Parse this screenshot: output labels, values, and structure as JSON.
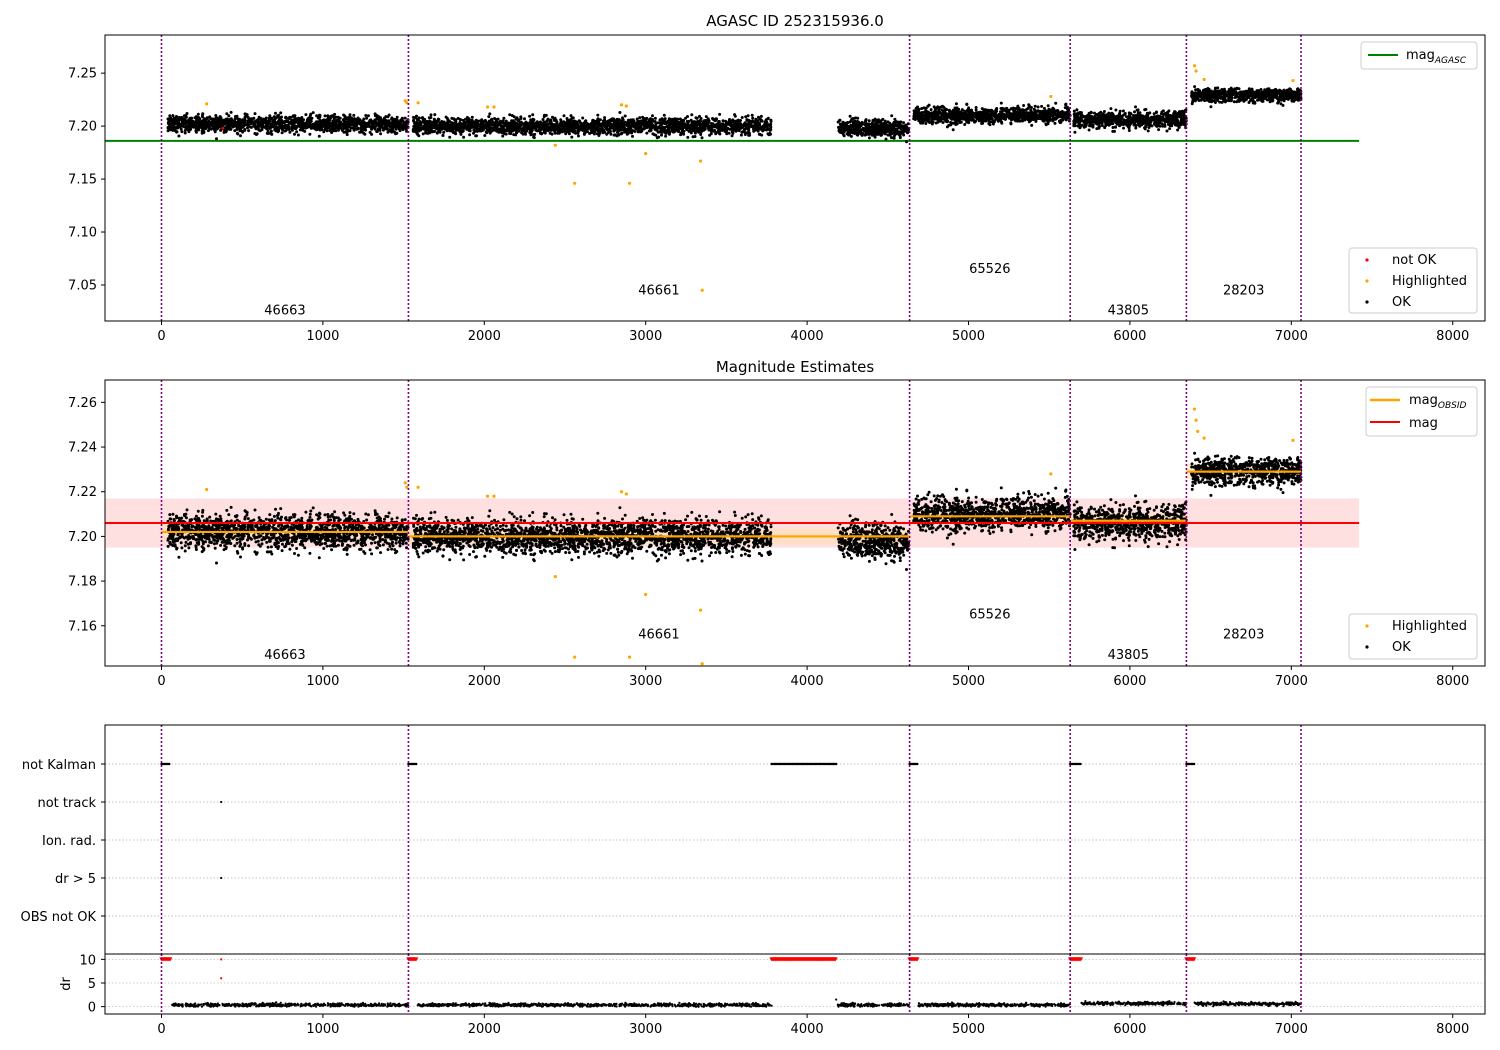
{
  "title": "AGASC ID 252315936.0",
  "panel2_title": "Magnitude Estimates",
  "colors": {
    "ok": "#000000",
    "highlighted": "#ffa500",
    "not_ok": "#ff0000",
    "mag_agasc": "#008000",
    "mag": "#ff0000",
    "mag_obsid": "#ffa500",
    "obs_boundary": "#800080",
    "band": "#ffcccc"
  },
  "chart_data": [
    {
      "type": "scatter",
      "title": "AGASC ID 252315936.0",
      "xlim": [
        -350,
        8200
      ],
      "ylim": [
        7.016,
        7.286
      ],
      "xticks": [
        0,
        1000,
        2000,
        3000,
        4000,
        5000,
        6000,
        7000,
        8000
      ],
      "yticks": [
        7.05,
        7.1,
        7.15,
        7.2,
        7.25
      ],
      "ytick_labels": [
        "7.05",
        "7.10",
        "7.15",
        "7.20",
        "7.25"
      ],
      "mag_agasc": 7.186,
      "mag_agasc_x": [
        -350,
        7420
      ],
      "obs_boundaries": [
        0,
        1530,
        4635,
        5630,
        6350,
        7060
      ],
      "obsids": [
        {
          "label": "46663",
          "x": 765,
          "y": 7.026
        },
        {
          "label": "46661",
          "x": 3082,
          "y": 7.045
        },
        {
          "label": "65526",
          "x": 5132,
          "y": 7.065
        },
        {
          "label": "43805",
          "x": 5990,
          "y": 7.026
        },
        {
          "label": "28203",
          "x": 6705,
          "y": 7.045
        }
      ],
      "ok_segments": [
        {
          "x0": 40,
          "x1": 1530,
          "mean": 7.202,
          "sd": 0.0055
        },
        {
          "x0": 1560,
          "x1": 3780,
          "mean": 7.2,
          "sd": 0.0055
        },
        {
          "x0": 4190,
          "x1": 4630,
          "mean": 7.198,
          "sd": 0.0055
        },
        {
          "x0": 4660,
          "x1": 5630,
          "mean": 7.21,
          "sd": 0.0055
        },
        {
          "x0": 5650,
          "x1": 6350,
          "mean": 7.206,
          "sd": 0.0055
        },
        {
          "x0": 6380,
          "x1": 7060,
          "mean": 7.229,
          "sd": 0.0045
        }
      ],
      "highlighted_x": [
        280,
        1510,
        1520,
        1590,
        2020,
        2060,
        2440,
        2560,
        2850,
        2880,
        2900,
        3000,
        3340,
        3350,
        5510,
        6400,
        6410,
        6460,
        7010
      ],
      "highlighted_y": [
        7.221,
        7.224,
        7.222,
        7.222,
        7.218,
        7.218,
        7.182,
        7.146,
        7.22,
        7.219,
        7.146,
        7.174,
        7.167,
        7.045,
        7.228,
        7.257,
        7.252,
        7.244,
        7.243
      ],
      "not_ok_x": [
        380
      ],
      "not_ok_y": [
        7.198
      ],
      "legend_top": [
        "mag_AGASC"
      ],
      "legend_bottom": [
        "not OK",
        "Highlighted",
        "OK"
      ]
    },
    {
      "type": "scatter",
      "title": "Magnitude Estimates",
      "xlim": [
        -350,
        8200
      ],
      "ylim": [
        7.142,
        7.27
      ],
      "xticks": [
        0,
        1000,
        2000,
        3000,
        4000,
        5000,
        6000,
        7000,
        8000
      ],
      "yticks": [
        7.16,
        7.18,
        7.2,
        7.22,
        7.24,
        7.26
      ],
      "ytick_labels": [
        "7.16",
        "7.18",
        "7.20",
        "7.22",
        "7.24",
        "7.26"
      ],
      "mag": 7.206,
      "mag_band": [
        7.195,
        7.217
      ],
      "mag_x": [
        -350,
        7420
      ],
      "obs_boundaries": [
        0,
        1530,
        4635,
        5630,
        6350,
        7060
      ],
      "mag_obsid": [
        {
          "x0": 0,
          "x1": 1530,
          "y": 7.202
        },
        {
          "x0": 1530,
          "x1": 4635,
          "y": 7.2
        },
        {
          "x0": 4635,
          "x1": 5630,
          "y": 7.209
        },
        {
          "x0": 5630,
          "x1": 6350,
          "y": 7.207
        },
        {
          "x0": 6350,
          "x1": 7060,
          "y": 7.229
        }
      ],
      "obsids": [
        {
          "label": "46663",
          "x": 765,
          "y": 7.147
        },
        {
          "label": "46661",
          "x": 3082,
          "y": 7.156
        },
        {
          "label": "65526",
          "x": 5132,
          "y": 7.165
        },
        {
          "label": "43805",
          "x": 5990,
          "y": 7.147
        },
        {
          "label": "28203",
          "x": 6705,
          "y": 7.156
        }
      ],
      "highlighted_x": [
        280,
        1510,
        1520,
        1590,
        2020,
        2060,
        2440,
        2560,
        2850,
        2880,
        2900,
        3000,
        3340,
        3350,
        5510,
        6400,
        6410,
        6420,
        6460,
        7010
      ],
      "highlighted_y": [
        7.221,
        7.224,
        7.222,
        7.222,
        7.218,
        7.218,
        7.182,
        7.146,
        7.22,
        7.219,
        7.146,
        7.174,
        7.167,
        7.143,
        7.228,
        7.257,
        7.252,
        7.247,
        7.244,
        7.243
      ],
      "legend_top": [
        "mag_OBSID",
        "mag"
      ],
      "legend_bottom": [
        "Highlighted",
        "OK"
      ]
    },
    {
      "type": "scatter",
      "title": "",
      "xlim": [
        -350,
        8200
      ],
      "xticks": [
        0,
        1000,
        2000,
        3000,
        4000,
        5000,
        6000,
        7000,
        8000
      ],
      "flag_labels": [
        "not Kalman",
        "not track",
        "Ion. rad.",
        "dr > 5",
        "OBS not OK"
      ],
      "dr_yticks": [
        0,
        5,
        10
      ],
      "dr_ylabel": "dr",
      "dr_ylim": [
        -0.5,
        10.5
      ],
      "obs_boundaries": [
        0,
        1530,
        4635,
        5630,
        6350,
        7060
      ],
      "not_kalman_ranges": [
        [
          0,
          55
        ],
        [
          1530,
          1580
        ],
        [
          3780,
          4180
        ],
        [
          4635,
          4685
        ],
        [
          5630,
          5700
        ],
        [
          6350,
          6400
        ]
      ],
      "not_track_x": [
        370
      ],
      "dr_gt5_x": [
        370
      ],
      "dr_clipped_ranges": [
        [
          0,
          55
        ],
        [
          1530,
          1580
        ],
        [
          3780,
          4180
        ],
        [
          4635,
          4685
        ],
        [
          5630,
          5700
        ],
        [
          6350,
          6400
        ]
      ],
      "dr_outliers_x": [
        370,
        370,
        4180
      ],
      "dr_outliers_y": [
        10,
        6,
        1.5
      ],
      "dr_segments": [
        {
          "x0": 60,
          "x1": 1530,
          "mean": 0.35
        },
        {
          "x0": 1580,
          "x1": 3780,
          "mean": 0.35
        },
        {
          "x0": 4190,
          "x1": 4630,
          "mean": 0.35
        },
        {
          "x0": 4690,
          "x1": 5630,
          "mean": 0.35
        },
        {
          "x0": 5700,
          "x1": 6350,
          "mean": 0.7
        },
        {
          "x0": 6400,
          "x1": 7060,
          "mean": 0.6
        }
      ]
    }
  ]
}
